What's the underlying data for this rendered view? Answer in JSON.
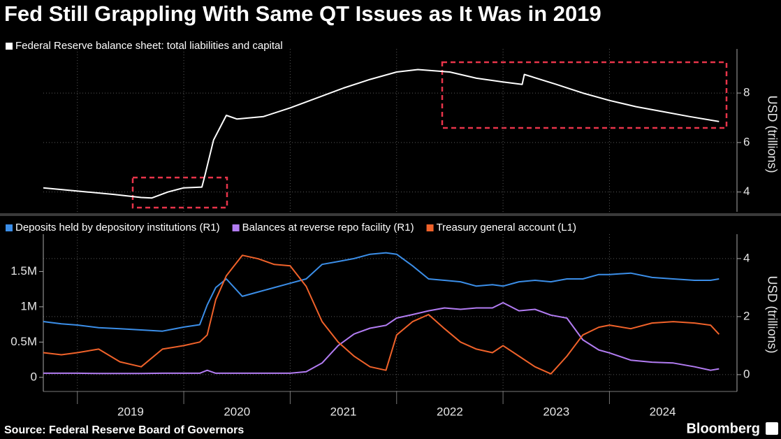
{
  "title": "Fed Still Grappling With Same QT Issues as It Was in 2019",
  "source": "Source: Federal Reserve Board of Governors",
  "brand": "Bloomberg",
  "chart_data": [
    {
      "type": "line",
      "y2label": "USD (trillions)",
      "xlim": [
        2018.68,
        2025.1
      ],
      "y2lim": [
        3.2,
        9.5
      ],
      "y2ticks": [
        4,
        6,
        8
      ],
      "grid": true,
      "x": [
        2018.68,
        2018.9,
        2019.1,
        2019.35,
        2019.6,
        2019.7,
        2019.85,
        2020.0,
        2020.17,
        2020.2,
        2020.28,
        2020.4,
        2020.5,
        2020.75,
        2021.0,
        2021.25,
        2021.5,
        2021.75,
        2022.0,
        2022.2,
        2022.5,
        2022.75,
        2023.0,
        2023.18,
        2023.2,
        2023.5,
        2023.75,
        2024.0,
        2024.25,
        2024.5,
        2024.75,
        2025.03
      ],
      "series": [
        {
          "name": "Federal Reserve balance sheet: total liabilities and capital",
          "color": "#ffffff",
          "axis": "y2",
          "values": [
            4.17,
            4.08,
            4.0,
            3.9,
            3.78,
            3.76,
            4.0,
            4.17,
            4.2,
            4.7,
            6.1,
            7.1,
            6.95,
            7.05,
            7.4,
            7.8,
            8.2,
            8.55,
            8.85,
            8.95,
            8.85,
            8.6,
            8.45,
            8.35,
            8.75,
            8.35,
            8.0,
            7.7,
            7.45,
            7.25,
            7.05,
            6.85
          ]
        }
      ]
    },
    {
      "type": "line",
      "y2label": "USD (trillions)",
      "xlim": [
        2018.68,
        2025.1
      ],
      "ylim": [
        -200000,
        1930000
      ],
      "yticks": [
        0,
        {
          "value": 500000,
          "label": "0.5M"
        },
        {
          "value": 1000000,
          "label": "1M"
        },
        {
          "value": 1500000,
          "label": "1.5M"
        }
      ],
      "y2lim": [
        -0.58,
        4.6
      ],
      "y2ticks": [
        0,
        2,
        4
      ],
      "xticks": [
        {
          "value": 2019,
          "label": "2019"
        },
        {
          "value": 2020,
          "label": "2020"
        },
        {
          "value": 2021,
          "label": "2021"
        },
        {
          "value": 2022,
          "label": "2022"
        },
        {
          "value": 2023,
          "label": "2023"
        },
        {
          "value": 2024,
          "label": "2024"
        }
      ],
      "grid": true,
      "x": [
        2018.68,
        2018.85,
        2019.0,
        2019.2,
        2019.4,
        2019.6,
        2019.8,
        2020.0,
        2020.15,
        2020.22,
        2020.3,
        2020.4,
        2020.55,
        2020.7,
        2020.85,
        2021.0,
        2021.15,
        2021.3,
        2021.45,
        2021.6,
        2021.75,
        2021.9,
        2022.0,
        2022.15,
        2022.3,
        2022.45,
        2022.6,
        2022.75,
        2022.9,
        2023.0,
        2023.15,
        2023.3,
        2023.45,
        2023.6,
        2023.75,
        2023.9,
        2024.0,
        2024.2,
        2024.4,
        2024.6,
        2024.8,
        2024.95,
        2025.03
      ],
      "series": [
        {
          "name": "Deposits held by depository institutions (R1)",
          "color": "#3b8ee8",
          "axis": "y2",
          "values": [
            1.83,
            1.75,
            1.71,
            1.62,
            1.58,
            1.54,
            1.5,
            1.64,
            1.72,
            2.4,
            3.0,
            3.3,
            2.7,
            2.85,
            3.0,
            3.15,
            3.3,
            3.8,
            3.9,
            4.0,
            4.15,
            4.2,
            4.15,
            3.75,
            3.3,
            3.25,
            3.2,
            3.05,
            3.1,
            3.05,
            3.2,
            3.25,
            3.2,
            3.3,
            3.3,
            3.45,
            3.45,
            3.5,
            3.35,
            3.3,
            3.25,
            3.25,
            3.3
          ]
        },
        {
          "name": "Balances at reverse repo facility (R1)",
          "color": "#b27cf2",
          "axis": "y2",
          "values": [
            0.05,
            0.05,
            0.05,
            0.04,
            0.04,
            0.04,
            0.05,
            0.05,
            0.05,
            0.15,
            0.05,
            0.05,
            0.05,
            0.05,
            0.05,
            0.05,
            0.1,
            0.4,
            1.0,
            1.4,
            1.6,
            1.7,
            1.95,
            2.07,
            2.2,
            2.3,
            2.25,
            2.3,
            2.3,
            2.48,
            2.2,
            2.25,
            2.05,
            1.95,
            1.2,
            0.85,
            0.75,
            0.5,
            0.43,
            0.4,
            0.27,
            0.15,
            0.2
          ]
        },
        {
          "name": "Treasury general account  (L1)",
          "color": "#f0622a",
          "axis": "y",
          "values": [
            350000,
            320000,
            350000,
            400000,
            220000,
            150000,
            400000,
            450000,
            500000,
            600000,
            1100000,
            1440000,
            1730000,
            1680000,
            1600000,
            1580000,
            1290000,
            790000,
            500000,
            300000,
            150000,
            100000,
            600000,
            790000,
            890000,
            690000,
            500000,
            400000,
            350000,
            450000,
            300000,
            150000,
            50000,
            300000,
            600000,
            710000,
            740000,
            690000,
            770000,
            790000,
            770000,
            740000,
            610000
          ]
        }
      ]
    }
  ]
}
